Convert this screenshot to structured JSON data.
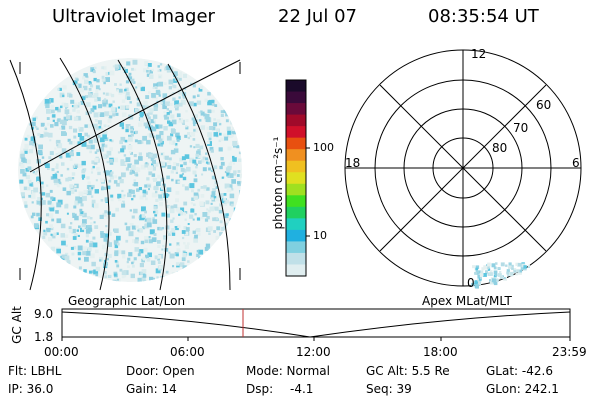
{
  "header": {
    "title": "Ultraviolet Imager",
    "date": "22 Jul 07",
    "time": "08:35:54 UT"
  },
  "colorbar": {
    "unit_label": "photon cm⁻²s⁻¹",
    "ticks": [
      "100",
      "10"
    ],
    "colors": [
      "#1a0a2a",
      "#3a0a3a",
      "#6a0a3a",
      "#a00a2a",
      "#d0102a",
      "#e85010",
      "#f09020",
      "#f0c020",
      "#e0e020",
      "#a0e020",
      "#40e020",
      "#20d060",
      "#20d0c0",
      "#20b0e0",
      "#80d0e0",
      "#c0e0e8",
      "#e0eef0"
    ]
  },
  "polar": {
    "mlt_labels": {
      "top": "12",
      "left": "18",
      "right": "6",
      "bottom": "0"
    },
    "lat_labels": [
      "60",
      "70",
      "80"
    ]
  },
  "timeline": {
    "left_label": "Geographic Lat/Lon",
    "right_label": "Apex MLat/MLT",
    "axis_label": "GC Alt",
    "y_ticks": [
      "9.0",
      "1.8"
    ],
    "x_ticks": [
      "00:00",
      "06:00",
      "12:00",
      "18:00",
      "23:59"
    ],
    "marker_color": "#c03030"
  },
  "info": {
    "flt": "Flt: LBHL",
    "door": "Door: Open",
    "mode": "Mode: Normal",
    "gcalt": "GC Alt: 5.5 Re",
    "glat": "GLat: -42.6",
    "ip": "IP: 36.0",
    "gain": "Gain: 14",
    "dsp_label": "Dsp:",
    "dsp_val": "-4.1",
    "seq": "Seq: 39",
    "glon": "GLon: 242.1"
  }
}
